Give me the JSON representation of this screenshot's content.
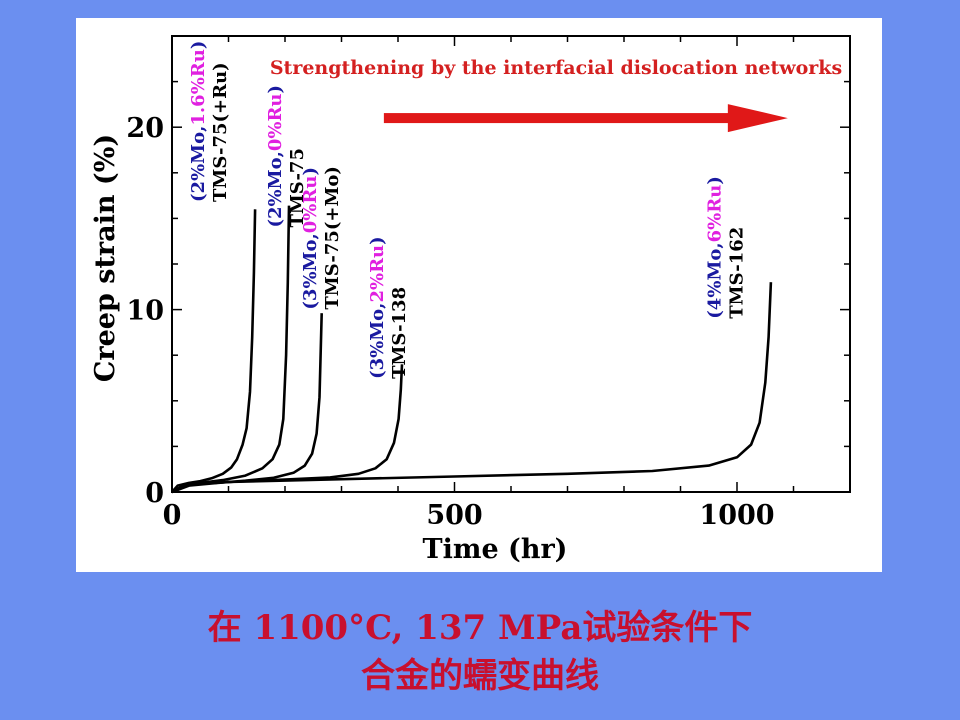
{
  "caption": {
    "line1": "在 1100°C, 137 MPa试验条件下",
    "line2": "合金的蠕变曲线"
  },
  "chart_data": {
    "type": "line",
    "xlabel": "Time (hr)",
    "ylabel": "Creep strain (%)",
    "xlim": [
      0,
      1200
    ],
    "ylim": [
      0,
      25
    ],
    "x_ticks": [
      0,
      500,
      1000
    ],
    "y_ticks": [
      0,
      10,
      20
    ],
    "grid": false,
    "legend": "none",
    "annotation": {
      "text": "Strengthening by the interfacial dislocation networks",
      "arrow_x": [
        375,
        1090
      ],
      "arrow_y": 20.5
    },
    "series": [
      {
        "name": "TMS-75(+Ru)",
        "composition": [
          {
            "text": "(",
            "color": "#1a1aa0"
          },
          {
            "text": "2%Mo,",
            "color": "#1a1aa0"
          },
          {
            "text": "1.6%Ru",
            "color": "#e020e0"
          },
          {
            "text": ")",
            "color": "#1a1aa0"
          }
        ],
        "label_anchor": [
          96,
          15.9
        ],
        "x": [
          0,
          10,
          30,
          50,
          70,
          90,
          105,
          115,
          125,
          132,
          138,
          142,
          145,
          147
        ],
        "y": [
          0,
          0.35,
          0.5,
          0.6,
          0.75,
          1.0,
          1.35,
          1.8,
          2.6,
          3.5,
          5.5,
          8.5,
          12,
          15.5
        ]
      },
      {
        "name": "TMS-75",
        "composition": [
          {
            "text": "(",
            "color": "#1a1aa0"
          },
          {
            "text": "2%Mo,",
            "color": "#1a1aa0"
          },
          {
            "text": "0%Ru",
            "color": "#e020e0"
          },
          {
            "text": ")",
            "color": "#1a1aa0"
          }
        ],
        "label_anchor": [
          232,
          14.5
        ],
        "x": [
          0,
          20,
          50,
          90,
          130,
          160,
          178,
          190,
          197,
          202,
          205,
          207
        ],
        "y": [
          0,
          0.35,
          0.5,
          0.65,
          0.9,
          1.3,
          1.8,
          2.6,
          4.0,
          7.5,
          11.5,
          15.7
        ]
      },
      {
        "name": "TMS-75(+Mo)",
        "composition": [
          {
            "text": "(",
            "color": "#1a1aa0"
          },
          {
            "text": "3%Mo,",
            "color": "#1a1aa0"
          },
          {
            "text": "0%Ru",
            "color": "#e020e0"
          },
          {
            "text": ")",
            "color": "#1a1aa0"
          }
        ],
        "label_anchor": [
          294,
          10.0
        ],
        "x": [
          0,
          30,
          80,
          130,
          180,
          215,
          235,
          248,
          256,
          261,
          263,
          265
        ],
        "y": [
          0,
          0.35,
          0.5,
          0.62,
          0.78,
          1.05,
          1.45,
          2.1,
          3.2,
          5.2,
          7.5,
          9.8
        ]
      },
      {
        "name": "TMS-138",
        "composition": [
          {
            "text": "(",
            "color": "#1a1aa0"
          },
          {
            "text": "3%Mo,",
            "color": "#1a1aa0"
          },
          {
            "text": "2%Ru",
            "color": "#e020e0"
          },
          {
            "text": ")",
            "color": "#1a1aa0"
          }
        ],
        "label_anchor": [
          412,
          6.2
        ],
        "x": [
          0,
          30,
          100,
          200,
          280,
          330,
          360,
          380,
          393,
          401,
          405,
          407
        ],
        "y": [
          0,
          0.4,
          0.55,
          0.68,
          0.8,
          1.0,
          1.3,
          1.8,
          2.7,
          4.0,
          5.6,
          7.0
        ]
      },
      {
        "name": "TMS-162",
        "composition": [
          {
            "text": "(",
            "color": "#1a1aa0"
          },
          {
            "text": "4%Mo,",
            "color": "#1a1aa0"
          },
          {
            "text": "6%Ru",
            "color": "#e020e0"
          },
          {
            "text": ")",
            "color": "#1a1aa0"
          }
        ],
        "label_anchor": [
          1010,
          9.5
        ],
        "x": [
          0,
          30,
          100,
          300,
          500,
          700,
          850,
          950,
          1000,
          1025,
          1040,
          1050,
          1056,
          1060
        ],
        "y": [
          0,
          0.4,
          0.55,
          0.7,
          0.85,
          1.0,
          1.15,
          1.45,
          1.9,
          2.6,
          3.8,
          6.0,
          8.5,
          11.5
        ]
      }
    ]
  }
}
